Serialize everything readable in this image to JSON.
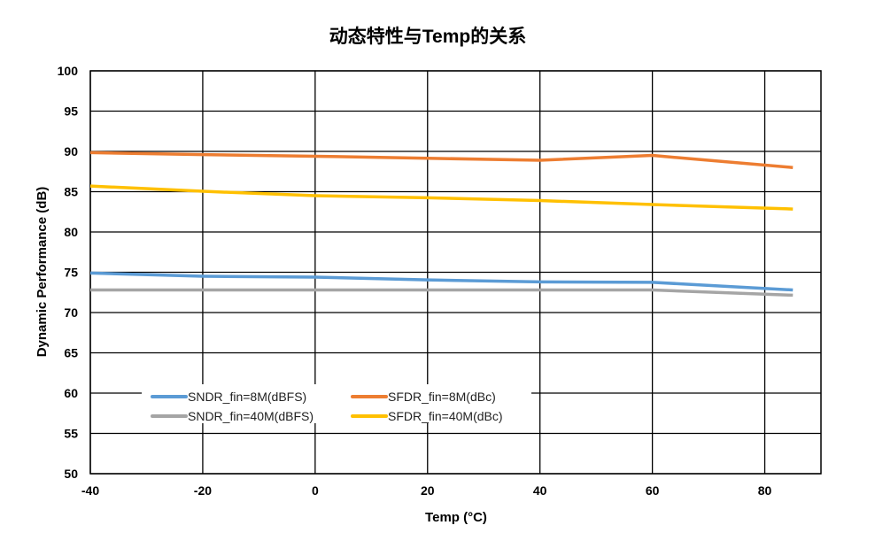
{
  "chart_data": {
    "type": "line",
    "title": "动态特性与Temp的关系",
    "xlabel": "Temp (°C)",
    "ylabel": "Dynamic Performance (dB)",
    "xlim": [
      -40,
      90
    ],
    "ylim": [
      50,
      100
    ],
    "xticks": [
      -40,
      -20,
      0,
      20,
      40,
      60,
      80
    ],
    "yticks": [
      50,
      55,
      60,
      65,
      70,
      75,
      80,
      85,
      90,
      95,
      100
    ],
    "grid": true,
    "legend_position": "bottom-left inside",
    "x": [
      -40,
      -20,
      0,
      20,
      40,
      60,
      85
    ],
    "series": [
      {
        "name": "SNDR_fin=8M(dBFS)",
        "color": "#5B9BD5",
        "values": [
          74.9,
          74.5,
          74.4,
          74.05,
          73.8,
          73.75,
          72.8
        ]
      },
      {
        "name": "SFDR_fin=8M(dBc)",
        "color": "#ED7D31",
        "values": [
          89.85,
          89.6,
          89.4,
          89.15,
          88.9,
          89.5,
          88.0
        ]
      },
      {
        "name": "SNDR_fin=40M(dBFS)",
        "color": "#A5A5A5",
        "values": [
          72.8,
          72.8,
          72.8,
          72.8,
          72.8,
          72.8,
          72.15
        ]
      },
      {
        "name": "SFDR_fin=40M(dBc)",
        "color": "#FFC000",
        "values": [
          85.7,
          85.05,
          84.5,
          84.25,
          83.9,
          83.4,
          82.85
        ]
      }
    ]
  }
}
